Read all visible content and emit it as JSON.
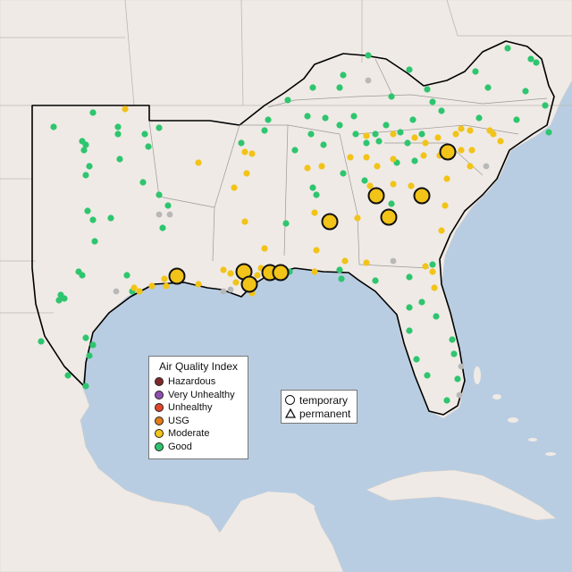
{
  "legend": {
    "title": "Air Quality Index",
    "categories": [
      {
        "label": "Hazardous",
        "color": "#7e2a2a"
      },
      {
        "label": "Very Unhealthy",
        "color": "#8f4fb0"
      },
      {
        "label": "Unhealthy",
        "color": "#e0452a"
      },
      {
        "label": "USG",
        "color": "#e47c17"
      },
      {
        "label": "Moderate",
        "color": "#f2c318"
      },
      {
        "label": "Good",
        "color": "#2ec56f"
      }
    ]
  },
  "monitor_types": {
    "temporary": "temporary",
    "permanent": "permanent"
  },
  "colors": {
    "water": "#b9cde2",
    "land": "#efeae5",
    "region_outline": "#000000",
    "no_data": "#b8b8b8"
  }
}
